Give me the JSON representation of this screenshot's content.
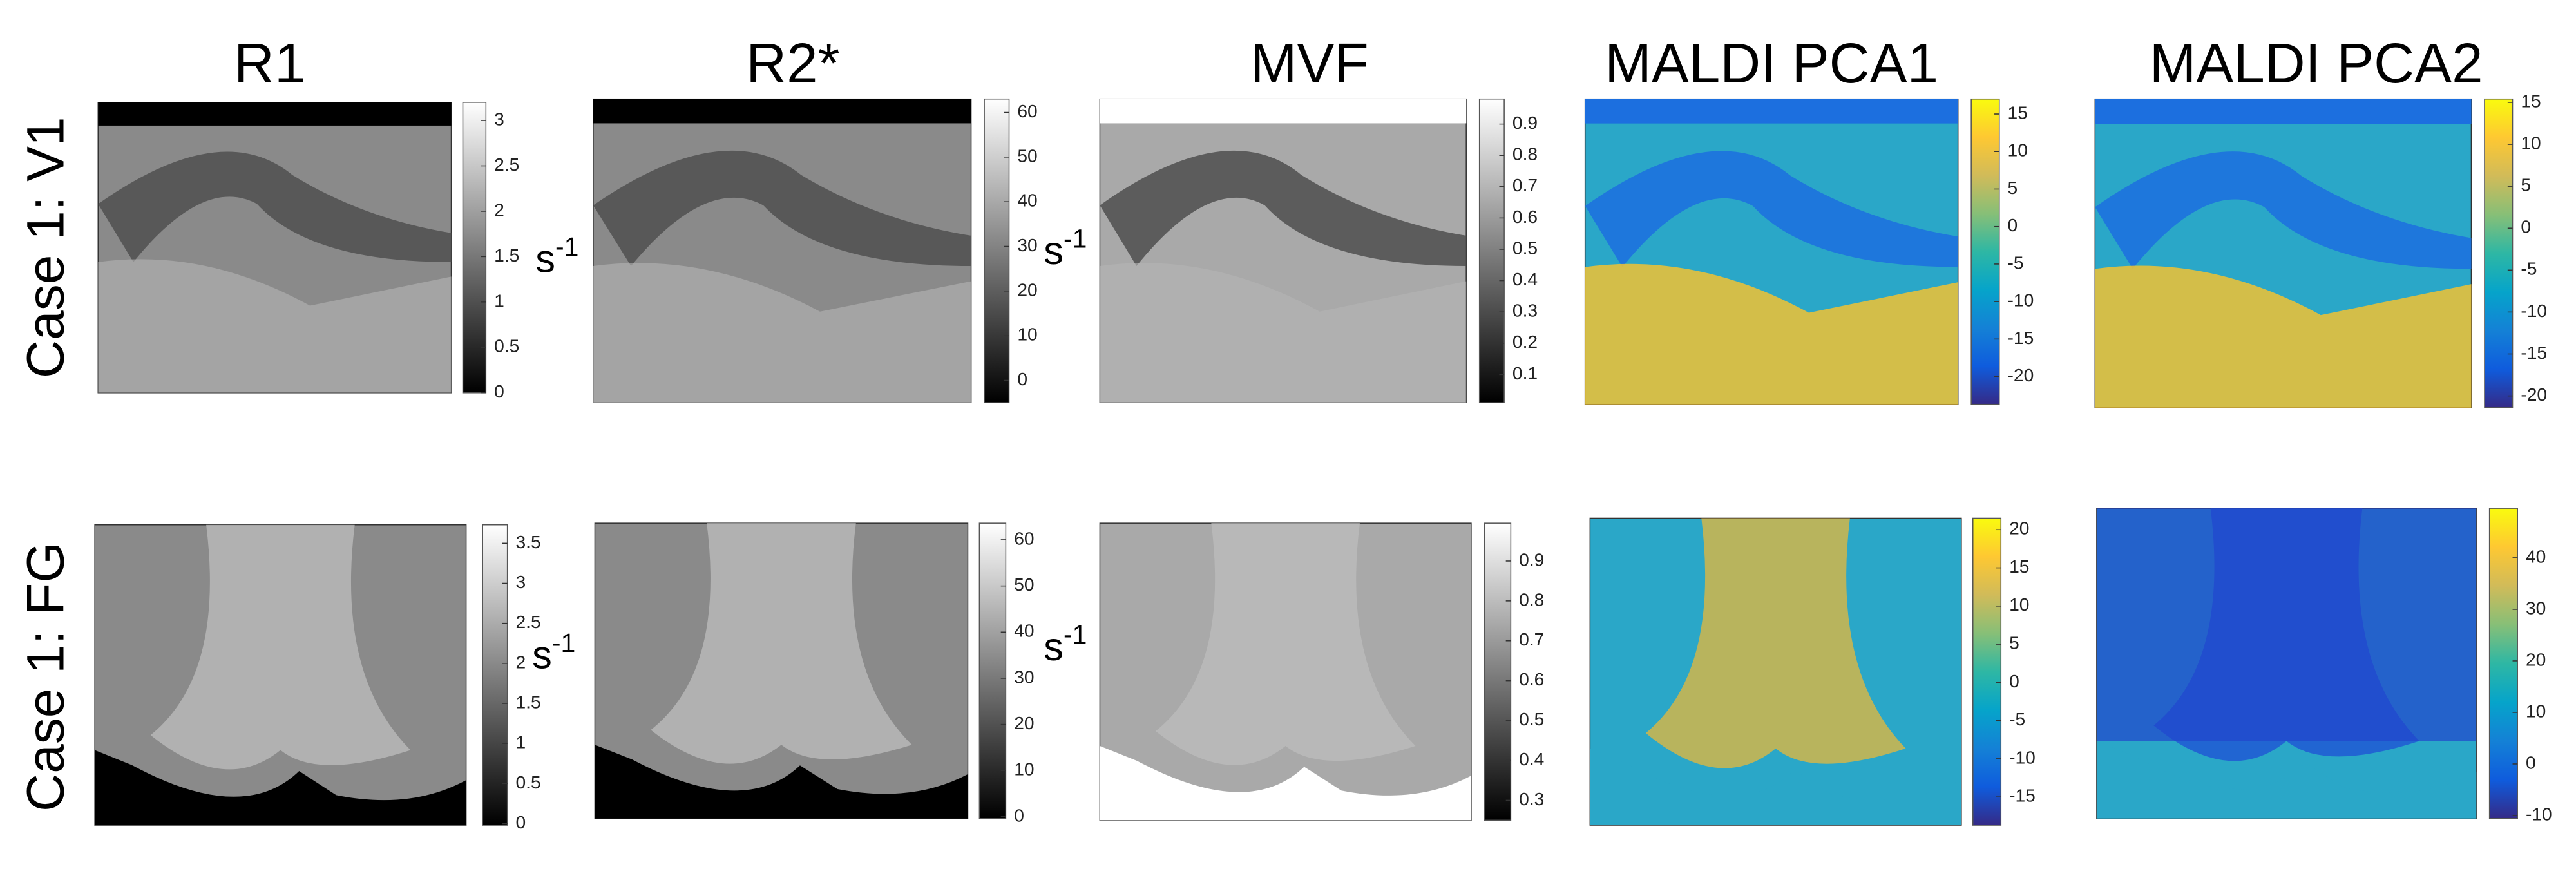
{
  "columns": [
    "R1",
    "R2*",
    "MVF",
    "MALDI PCA1",
    "MALDI PCA2"
  ],
  "rows": [
    {
      "label": "Case 1: V1",
      "panels": [
        {
          "colormap": "gray",
          "clim": [
            0,
            3.2
          ],
          "ticks": [
            0,
            0.5,
            1,
            1.5,
            2,
            2.5,
            3
          ],
          "unit": {
            "base": "s",
            "exp": "-1"
          }
        },
        {
          "colormap": "gray",
          "clim": [
            -5,
            63
          ],
          "ticks": [
            0,
            10,
            20,
            30,
            40,
            50,
            60
          ],
          "unit": {
            "base": "s",
            "exp": "-1"
          }
        },
        {
          "colormap": "gray",
          "clim": [
            0.01,
            0.98
          ],
          "ticks": [
            0.1,
            0.2,
            0.3,
            0.4,
            0.5,
            0.6,
            0.7,
            0.8,
            0.9
          ]
        },
        {
          "colormap": "parula",
          "clim": [
            -23.7,
            17
          ],
          "ticks": [
            -20,
            -15,
            -10,
            -5,
            0,
            5,
            10,
            15
          ]
        },
        {
          "colormap": "parula",
          "clim": [
            -21.4,
            15.4
          ],
          "ticks": [
            -20,
            -15,
            -10,
            -5,
            0,
            5,
            10,
            15
          ]
        }
      ]
    },
    {
      "label": "Case 1: FG",
      "panels": [
        {
          "colormap": "gray",
          "clim": [
            -0.02,
            3.73
          ],
          "ticks": [
            0,
            0.5,
            1,
            1.5,
            2,
            2.5,
            3,
            3.5
          ],
          "unit": {
            "base": "s",
            "exp": "-1"
          }
        },
        {
          "colormap": "gray",
          "clim": [
            -0.4,
            63.6
          ],
          "ticks": [
            0,
            10,
            20,
            30,
            40,
            50,
            60
          ],
          "unit": {
            "base": "s",
            "exp": "-1"
          }
        },
        {
          "colormap": "gray",
          "clim": [
            0.25,
            0.995
          ],
          "ticks": [
            0.3,
            0.4,
            0.5,
            0.6,
            0.7,
            0.8,
            0.9
          ]
        },
        {
          "colormap": "parula",
          "clim": [
            -18.7,
            21.5
          ],
          "ticks": [
            -15,
            -10,
            -5,
            0,
            5,
            10,
            15,
            20
          ]
        },
        {
          "colormap": "parula",
          "clim": [
            -10.6,
            49.6
          ],
          "ticks": [
            -10,
            0,
            10,
            20,
            30,
            40
          ]
        }
      ]
    }
  ]
}
